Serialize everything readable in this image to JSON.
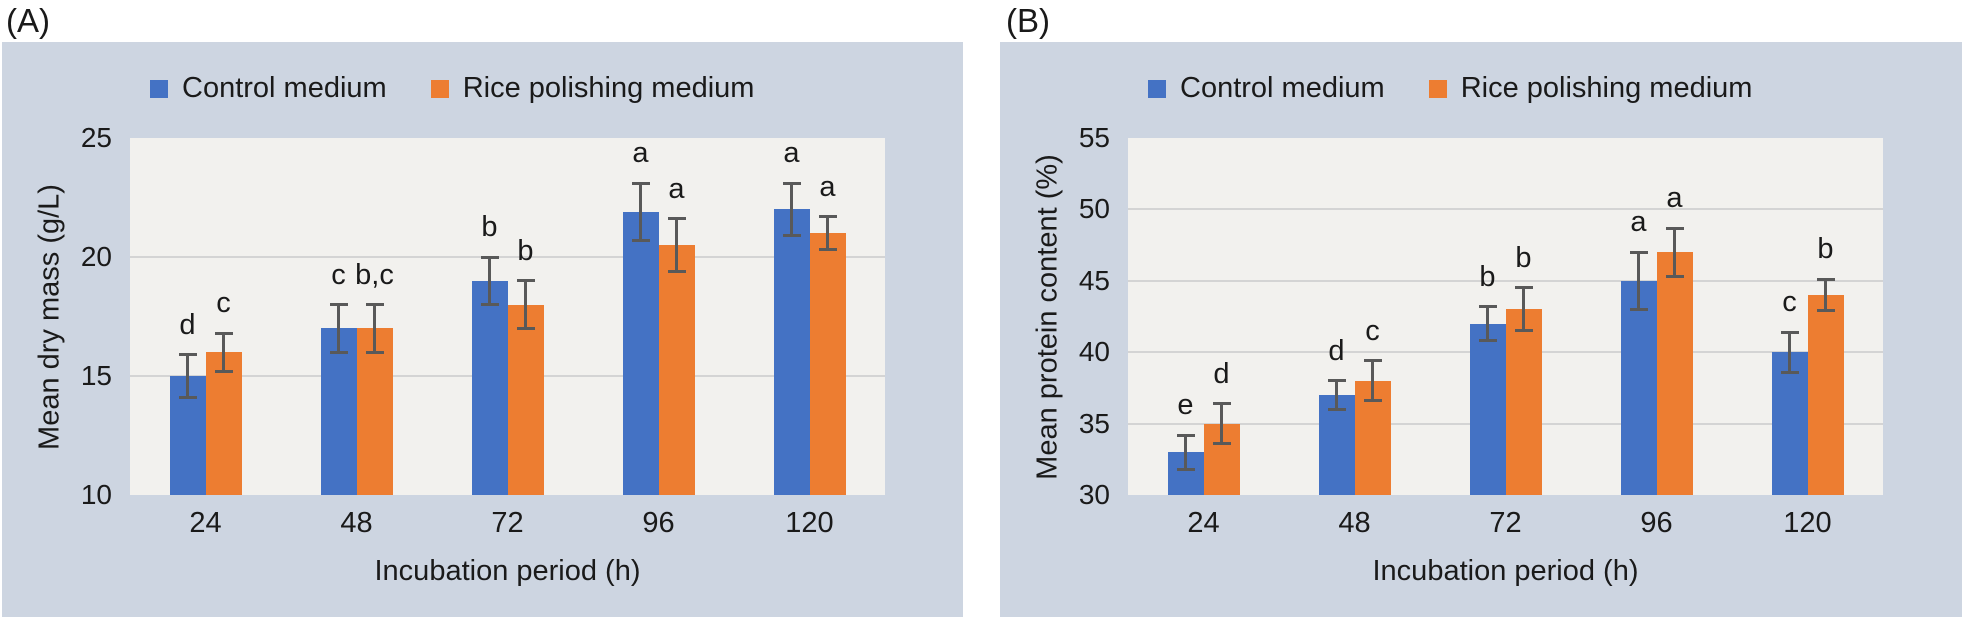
{
  "panels": [
    {
      "label": "(A)"
    },
    {
      "label": "(B)"
    }
  ],
  "colors": {
    "card_background": "#cdd5e1",
    "plot_background": "#f2f1ee",
    "gridline": "#d4d4d4",
    "error_bar": "#595959",
    "text": "#1a1a1a",
    "control_blue": "#4472c4",
    "rice_orange": "#ed7d31"
  },
  "chart_data": [
    {
      "type": "bar",
      "panel": "(A)",
      "categories": [
        "24",
        "48",
        "72",
        "96",
        "120"
      ],
      "xlabel": "Incubation period (h)",
      "ylabel": "Mean dry mass (g/L)",
      "ylim": [
        10,
        25
      ],
      "ytick_step": 5,
      "grid": true,
      "legend_position": "top",
      "series": [
        {
          "key": "control",
          "name": "Control medium",
          "color": "#4472c4",
          "values": [
            15,
            17,
            19,
            21.9,
            22
          ],
          "errors": [
            0.9,
            1.0,
            1.0,
            1.2,
            1.1
          ],
          "sig_letters": [
            "d",
            "c",
            "b",
            "a",
            "a"
          ]
        },
        {
          "key": "rice",
          "name": "Rice polishing medium",
          "color": "#ed7d31",
          "values": [
            16,
            17,
            18,
            20.5,
            21
          ],
          "errors": [
            0.8,
            1.0,
            1.0,
            1.1,
            0.7
          ],
          "sig_letters": [
            "c",
            "b,c",
            "b",
            "a",
            "a"
          ]
        }
      ]
    },
    {
      "type": "bar",
      "panel": "(B)",
      "categories": [
        "24",
        "48",
        "72",
        "96",
        "120"
      ],
      "xlabel": "Incubation period (h)",
      "ylabel": "Mean protein content (%)",
      "ylim": [
        30,
        55
      ],
      "ytick_step": 5,
      "grid": true,
      "legend_position": "top",
      "series": [
        {
          "key": "control",
          "name": "Control medium",
          "color": "#4472c4",
          "values": [
            33,
            37,
            42,
            45,
            40
          ],
          "errors": [
            1.2,
            1.0,
            1.2,
            2.0,
            1.4
          ],
          "sig_letters": [
            "e",
            "d",
            "b",
            "a",
            "c"
          ]
        },
        {
          "key": "rice",
          "name": "Rice polishing medium",
          "color": "#ed7d31",
          "values": [
            35,
            38,
            43,
            47,
            44
          ],
          "errors": [
            1.4,
            1.4,
            1.5,
            1.7,
            1.1
          ],
          "sig_letters": [
            "d",
            "c",
            "b",
            "a",
            "b"
          ]
        }
      ]
    }
  ]
}
